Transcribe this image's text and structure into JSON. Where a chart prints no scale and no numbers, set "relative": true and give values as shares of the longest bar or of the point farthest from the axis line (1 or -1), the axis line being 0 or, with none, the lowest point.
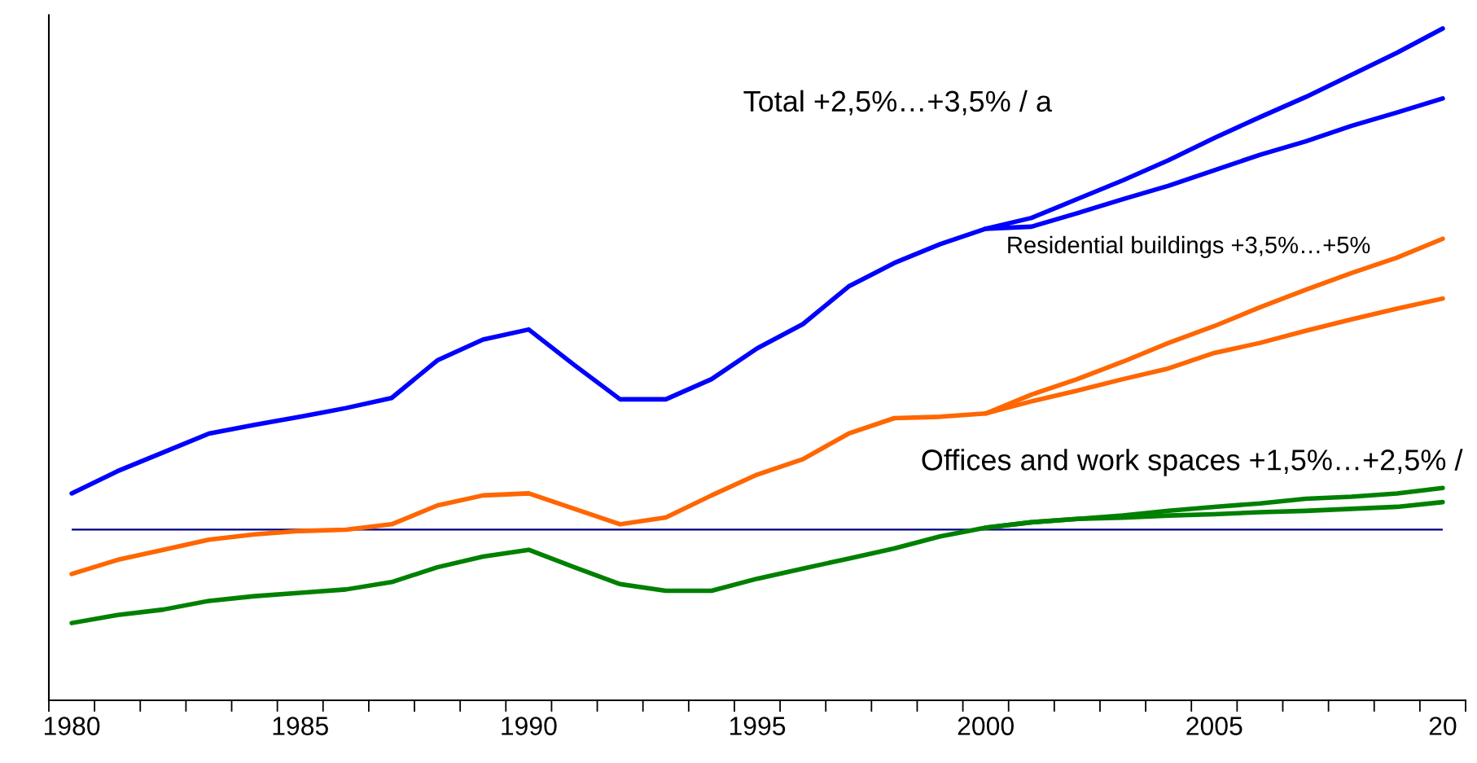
{
  "chart_data": {
    "type": "line",
    "relative": true,
    "categories": [
      "1980",
      null,
      null,
      null,
      null,
      "1985",
      null,
      null,
      null,
      null,
      "1990",
      null,
      null,
      null,
      null,
      "1995",
      null,
      null,
      null,
      null,
      "2000",
      null,
      null,
      null,
      null,
      "2005",
      null,
      null,
      null,
      null,
      "20"
    ],
    "series": [
      {
        "color": "#0000ff",
        "values": [
          0.308,
          0.341,
          0.369,
          0.397,
          0.41,
          0.422,
          0.435,
          0.45,
          0.506,
          0.537,
          0.552,
          0.499,
          0.448,
          0.448,
          0.478,
          0.524,
          0.56,
          0.616,
          0.651,
          0.679,
          0.702,
          0.718,
          0.746,
          0.774,
          0.804,
          0.837,
          0.868,
          0.898,
          0.931,
          0.964,
          1
        ]
      },
      {
        "color": "#0000ff",
        "values": [
          null,
          null,
          null,
          null,
          null,
          null,
          null,
          null,
          null,
          null,
          null,
          null,
          null,
          null,
          null,
          null,
          null,
          null,
          null,
          null,
          0.702,
          0.705,
          0.725,
          0.746,
          0.766,
          0.789,
          0.812,
          0.832,
          0.855,
          0.875,
          0.896
        ]
      },
      {
        "color": "#ff6600",
        "values": [
          0.188,
          0.209,
          0.224,
          0.239,
          0.247,
          0.252,
          0.254,
          0.262,
          0.29,
          0.305,
          0.308,
          0.285,
          0.262,
          0.272,
          0.305,
          0.336,
          0.359,
          0.397,
          0.42,
          0.422,
          0.427,
          0.455,
          0.478,
          0.504,
          0.532,
          0.557,
          0.585,
          0.611,
          0.636,
          0.659,
          0.687
        ]
      },
      {
        "color": "#ff6600",
        "values": [
          null,
          null,
          null,
          null,
          null,
          null,
          null,
          null,
          null,
          null,
          null,
          null,
          null,
          null,
          null,
          null,
          null,
          null,
          null,
          null,
          0.427,
          0.445,
          0.461,
          0.478,
          0.494,
          0.517,
          0.532,
          0.55,
          0.567,
          0.583,
          0.598
        ]
      },
      {
        "color": "#008000",
        "values": [
          0.115,
          0.127,
          0.135,
          0.148,
          0.155,
          0.16,
          0.165,
          0.176,
          0.198,
          0.214,
          0.224,
          0.198,
          0.173,
          0.163,
          0.163,
          0.181,
          0.196,
          0.211,
          0.226,
          0.244,
          0.257,
          0.265,
          0.27,
          0.275,
          0.282,
          0.288,
          0.293,
          0.3,
          0.303,
          0.308,
          0.316
        ]
      },
      {
        "color": "#008000",
        "values": [
          null,
          null,
          null,
          null,
          null,
          null,
          null,
          null,
          null,
          null,
          null,
          null,
          null,
          null,
          null,
          null,
          null,
          null,
          null,
          null,
          0.257,
          0.265,
          0.27,
          0.272,
          0.275,
          0.277,
          0.28,
          0.282,
          0.285,
          0.288,
          0.295
        ]
      }
    ],
    "ref_lines": [
      {
        "axis": "y",
        "value": 0.254,
        "color": "#000080"
      }
    ],
    "annotations": [
      "Total +2,5%…+3,5% / a",
      "Residential buildings +3,5%…+5%",
      "Offices and work spaces +1,5%…+2,5% /"
    ]
  }
}
